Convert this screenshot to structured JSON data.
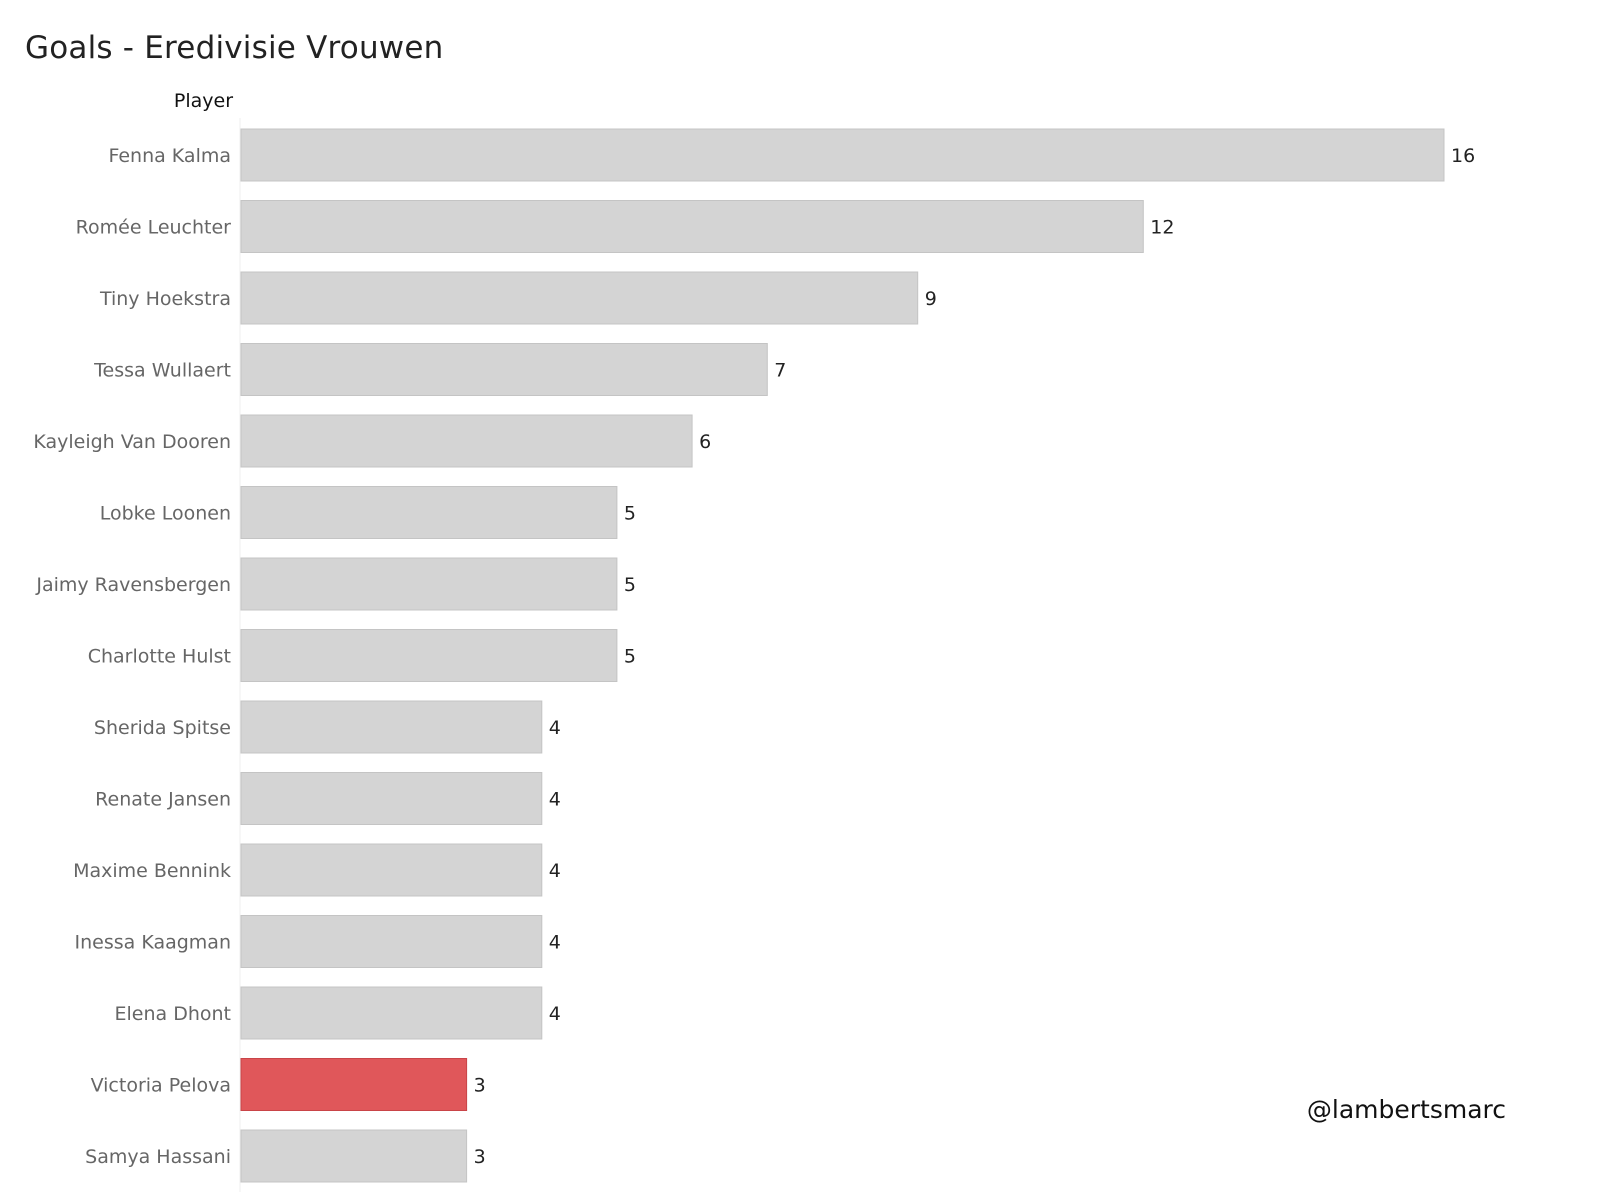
{
  "chart_data": {
    "type": "bar",
    "orientation": "horizontal",
    "title": "Goals - Eredivisie Vrouwen",
    "category_header": "Player",
    "categories": [
      "Fenna Kalma",
      "Romée Leuchter",
      "Tiny Hoekstra",
      "Tessa Wullaert",
      "Kayleigh Van Dooren",
      "Lobke Loonen",
      "Jaimy Ravensbergen",
      "Charlotte Hulst",
      "Sherida Spitse",
      "Renate Jansen",
      "Maxime Bennink",
      "Inessa Kaagman",
      "Elena Dhont",
      "Victoria Pelova",
      "Samya Hassani"
    ],
    "values": [
      16,
      12,
      9,
      7,
      6,
      5,
      5,
      5,
      4,
      4,
      4,
      4,
      4,
      3,
      3
    ],
    "highlight": "Victoria Pelova",
    "xlim": [
      0,
      16
    ],
    "grid": false,
    "colors": {
      "bar": "#d4d4d4",
      "bar_stroke": "#c4c4c4",
      "highlight": "#e0575a",
      "highlight_stroke": "#c94448"
    }
  },
  "credit": "@lambertsmarc"
}
